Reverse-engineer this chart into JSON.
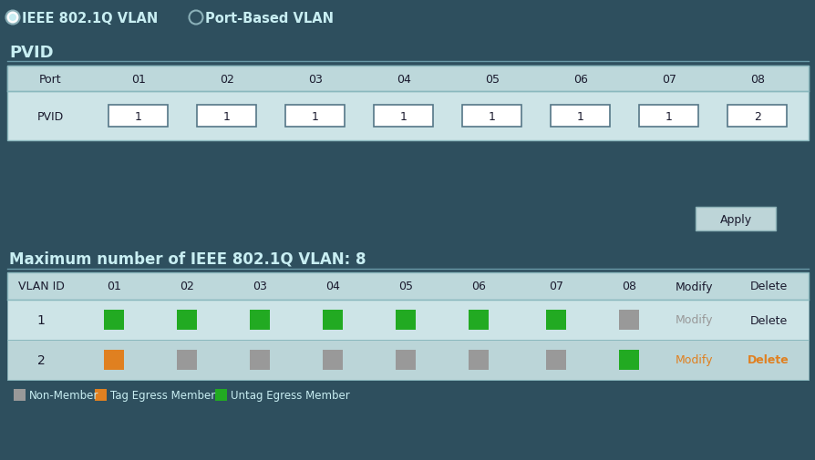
{
  "bg_color": "#2e4f5e",
  "table_bg": "#cde4e7",
  "header_bg": "#bdd8db",
  "row2_bg": "#bbd5d8",
  "text_dark": "#1a1a2e",
  "text_light": "#c8eef2",
  "green_color": "#22aa22",
  "orange_color": "#e08020",
  "gray_color": "#999999",
  "radio_selected": "IEEE 802.1Q VLAN",
  "radio_unselected": "Port-Based VLAN",
  "pvid_section_title": "PVID",
  "ports": [
    "01",
    "02",
    "03",
    "04",
    "05",
    "06",
    "07",
    "08"
  ],
  "pvid_values": [
    "1",
    "1",
    "1",
    "1",
    "1",
    "1",
    "1",
    "2"
  ],
  "apply_button": "Apply",
  "max_label": "Maximum number of IEEE 802.1Q VLAN: 8",
  "vlan_header": [
    "VLAN ID",
    "01",
    "02",
    "03",
    "04",
    "05",
    "06",
    "07",
    "08",
    "Modify",
    "Delete"
  ],
  "vlan_rows": [
    {
      "id": "1",
      "cells": [
        "green",
        "green",
        "green",
        "green",
        "green",
        "green",
        "green",
        "gray"
      ],
      "modify": "Modify",
      "modify_color": "#999999",
      "delete": "Delete",
      "delete_color": "#1a1a2e"
    },
    {
      "id": "2",
      "cells": [
        "orange",
        "gray",
        "gray",
        "gray",
        "gray",
        "gray",
        "gray",
        "green"
      ],
      "modify": "Modify",
      "modify_color": "#e08020",
      "delete": "Delete",
      "delete_color": "#e08020"
    }
  ],
  "legend_items": [
    {
      "color": "#999999",
      "label": "Non-Member"
    },
    {
      "color": "#e08020",
      "label": "Tag Egress Member"
    },
    {
      "color": "#22aa22",
      "label": "Untag Egress Member"
    }
  ]
}
